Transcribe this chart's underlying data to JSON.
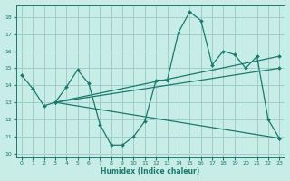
{
  "xlabel": "Humidex (Indice chaleur)",
  "xlim": [
    -0.5,
    23.5
  ],
  "ylim": [
    9.8,
    18.7
  ],
  "yticks": [
    10,
    11,
    12,
    13,
    14,
    15,
    16,
    17,
    18
  ],
  "xticks": [
    0,
    1,
    2,
    3,
    4,
    5,
    6,
    7,
    8,
    9,
    10,
    11,
    12,
    13,
    14,
    15,
    16,
    17,
    18,
    19,
    20,
    21,
    22,
    23
  ],
  "bg_color": "#c8ece6",
  "grid_color": "#9ecfca",
  "line_color": "#1a7a6e",
  "series0_x": [
    0,
    1,
    2,
    3,
    4,
    5,
    6,
    7,
    8,
    9,
    10,
    11,
    12,
    13,
    14,
    15,
    16,
    17,
    18,
    19,
    20,
    21,
    22,
    23
  ],
  "series0_y": [
    14.6,
    13.8,
    12.8,
    13.0,
    13.9,
    14.9,
    14.1,
    11.7,
    10.5,
    10.5,
    11.0,
    11.9,
    14.3,
    14.3,
    17.1,
    18.3,
    17.8,
    15.2,
    16.0,
    15.8,
    15.0,
    15.7,
    12.0,
    10.9
  ],
  "series1_x": [
    3,
    23
  ],
  "series1_y": [
    13.0,
    15.0
  ],
  "series2_x": [
    3,
    23
  ],
  "series2_y": [
    13.0,
    10.9
  ],
  "series3_x": [
    3,
    23
  ],
  "series3_y": [
    13.0,
    15.7
  ]
}
